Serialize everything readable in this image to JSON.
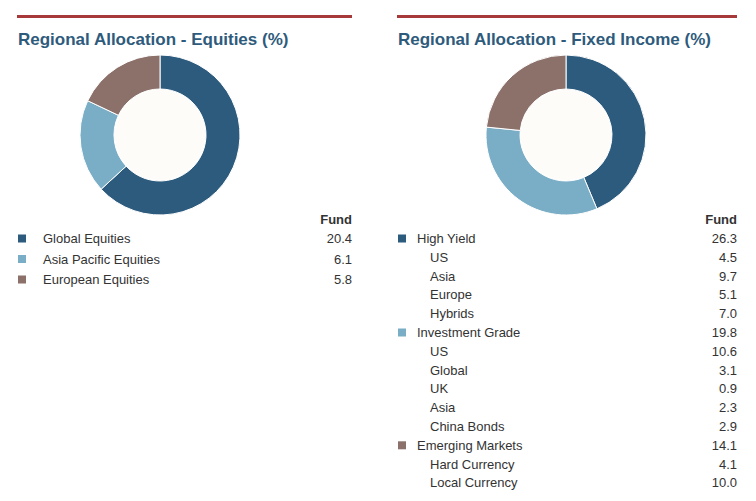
{
  "chart_data": [
    {
      "type": "donut",
      "title": "Regional Allocation - Equities (%)",
      "value_header": "Fund",
      "categories": [
        "Global Equities",
        "Asia Pacific Equities",
        "European Equities"
      ],
      "values": [
        20.4,
        6.1,
        5.8
      ],
      "colors": [
        "#2d5b7e",
        "#7aadc6",
        "#8b716a"
      ]
    },
    {
      "type": "donut",
      "title": "Regional Allocation - Fixed Income (%)",
      "value_header": "Fund",
      "categories": [
        "High Yield",
        "Investment Grade",
        "Emerging Markets"
      ],
      "values": [
        26.3,
        19.8,
        14.1
      ],
      "colors": [
        "#2d5b7e",
        "#7aadc6",
        "#8b716a"
      ],
      "subcategories": [
        [
          {
            "label": "US",
            "value": 4.5
          },
          {
            "label": "Asia",
            "value": 9.7
          },
          {
            "label": "Europe",
            "value": 5.1
          },
          {
            "label": "Hybrids",
            "value": 7.0
          }
        ],
        [
          {
            "label": "US",
            "value": 10.6
          },
          {
            "label": "Global",
            "value": 3.1
          },
          {
            "label": "UK",
            "value": 0.9
          },
          {
            "label": "Asia",
            "value": 2.3
          },
          {
            "label": "China Bonds",
            "value": 2.9
          }
        ],
        [
          {
            "label": "Hard Currency",
            "value": 4.1
          },
          {
            "label": "Local Currency",
            "value": 10.0
          }
        ]
      ]
    }
  ]
}
